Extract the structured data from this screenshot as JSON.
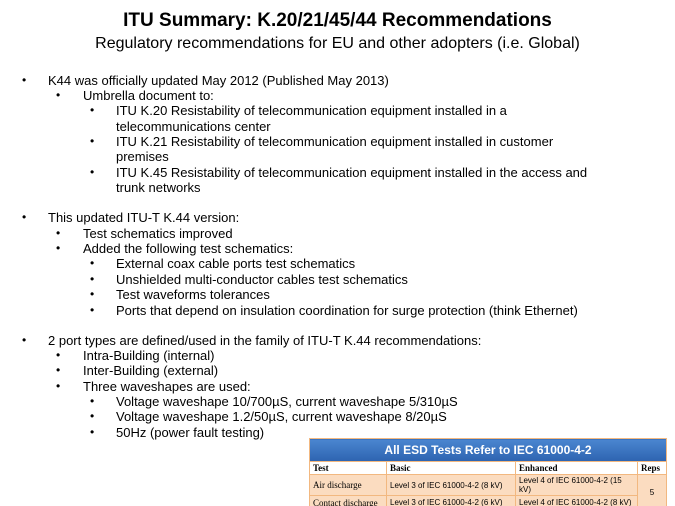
{
  "title": "ITU Summary: K.20/21/45/44 Recommendations",
  "subtitle": "Regulatory recommendations for EU and other adopters (i.e. Global)",
  "bullets": [
    {
      "level": 1,
      "text": "K44 was officially updated May 2012 (Published May 2013)"
    },
    {
      "level": 2,
      "text": "Umbrella  document to:"
    },
    {
      "level": 3,
      "text": "ITU K.20 Resistability of telecommunication equipment installed in  a"
    },
    {
      "level": 0,
      "text": "telecommunications center"
    },
    {
      "level": 3,
      "text": "ITU K.21 Resistability of telecommunication equipment installed in  customer"
    },
    {
      "level": 0,
      "text": "premises"
    },
    {
      "level": 3,
      "text": "ITU K.45 Resistability of telecommunication equipment installed in  the access and"
    },
    {
      "level": 0,
      "text": "trunk networks"
    },
    {
      "level": 1,
      "text": "This updated ITU-T K.44 version:"
    },
    {
      "level": 2,
      "text": "Test schematics improved"
    },
    {
      "level": 2,
      "text": "Added the following test schematics:"
    },
    {
      "level": 3,
      "text": "External coax cable ports test schematics"
    },
    {
      "level": 3,
      "text": "Unshielded multi-conductor cables test schematics"
    },
    {
      "level": 3,
      "text": "Test waveforms tolerances"
    },
    {
      "level": 3,
      "text": "Ports that depend on insulation coordination for surge protection (think Ethernet)"
    },
    {
      "level": 1,
      "text": "2 port types are defined/used in the family of ITU-T K.44 recommendations:"
    },
    {
      "level": 2,
      "text": "Intra-Building (internal)"
    },
    {
      "level": 2,
      "text": "Inter-Building (external)"
    },
    {
      "level": 2,
      "text": "Three waveshapes are used:"
    },
    {
      "level": 3,
      "text": "Voltage waveshape 10/700µS, current waveshape 5/310µS"
    },
    {
      "level": 3,
      "text": "Voltage waveshape 1.2/50µS, current waveshape 8/20µS"
    },
    {
      "level": 3,
      "text": "50Hz (power fault testing)"
    }
  ],
  "table": {
    "title": "All ESD Tests   Refer to IEC 61000-4-2",
    "headers": [
      "Test",
      "Basic",
      "Enhanced",
      "Reps"
    ],
    "rows": [
      [
        "Air discharge",
        "Level 3 of IEC 61000-4-2 (8 kV)",
        "Level 4 of IEC 61000-4-2 (15 kV)"
      ],
      [
        "Contact discharge",
        "Level 3 of IEC 61000-4-2 (6 kV)",
        "Level 4 of IEC 61000-4-2 (8 kV)"
      ]
    ],
    "reps": "5"
  }
}
